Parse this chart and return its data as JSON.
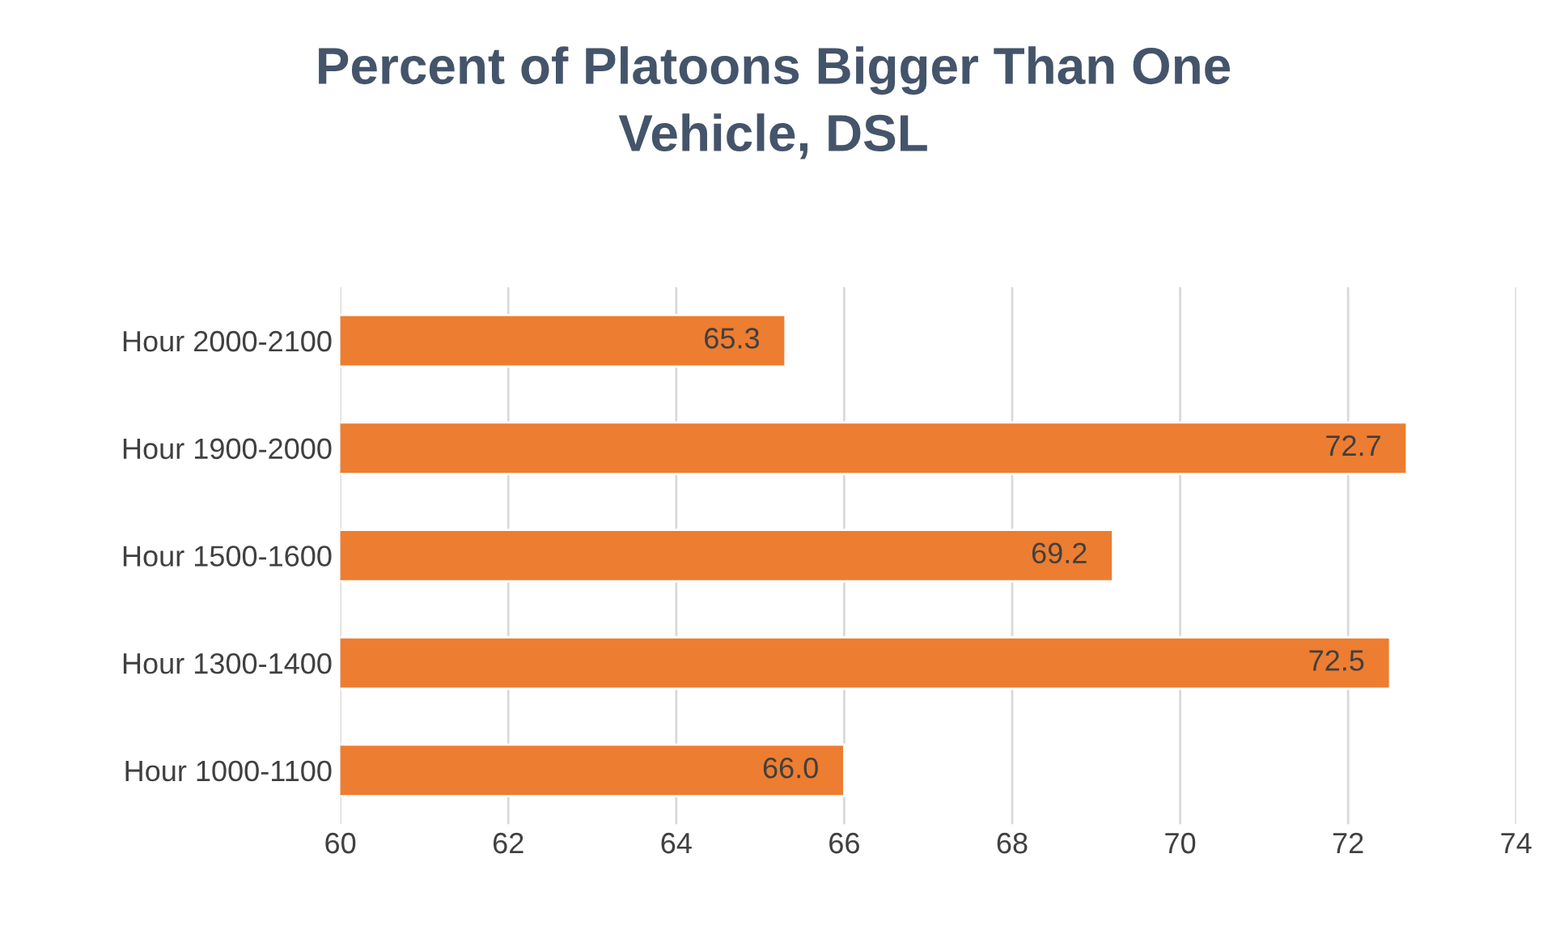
{
  "chart_data": {
    "type": "bar",
    "orientation": "horizontal",
    "title": "Percent of Platoons Bigger Than One\nVehicle, DSL",
    "categories": [
      "Hour 2000-2100",
      "Hour 1900-2000",
      "Hour 1500-1600",
      "Hour 1300-1400",
      "Hour 1000-1100"
    ],
    "values": [
      65.3,
      72.7,
      69.2,
      72.5,
      66.0
    ],
    "value_labels": [
      "65.3",
      "72.7",
      "69.2",
      "72.5",
      "66.0"
    ],
    "color": "#ed7d31",
    "xlim": [
      60,
      74
    ],
    "xticks": [
      60,
      62,
      64,
      66,
      68,
      70,
      72,
      74
    ],
    "grid": "x",
    "legend": false
  }
}
